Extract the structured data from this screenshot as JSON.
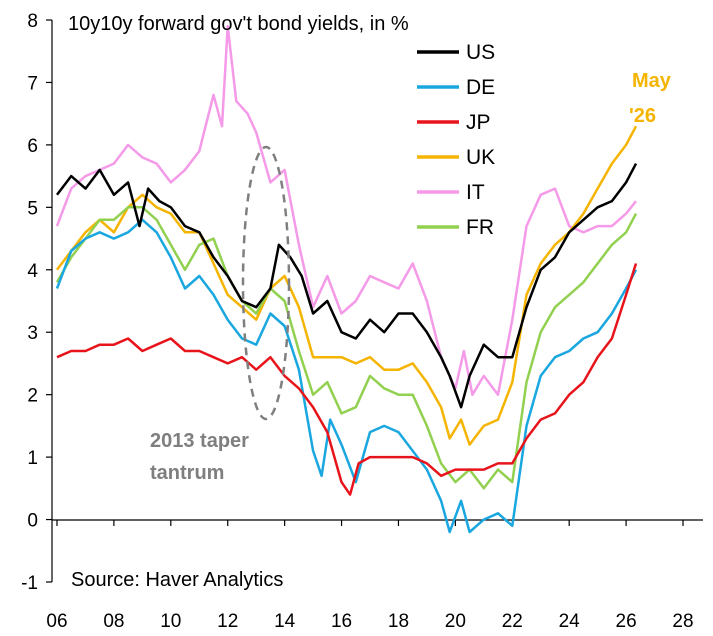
{
  "chart_data": {
    "type": "line",
    "title": "10y10y forward gov't bond yields, in %",
    "source": "Source: Haver Analytics",
    "annotation_text_1": "2013 taper",
    "annotation_text_2": "tantrum",
    "end_label_1": "May",
    "end_label_2": "'26",
    "end_label_color": "#f5b400",
    "ylim": [
      -1,
      8
    ],
    "xlim": [
      2006,
      2028
    ],
    "y_ticks": [
      "-1",
      "0",
      "1",
      "2",
      "3",
      "4",
      "5",
      "6",
      "7",
      "8"
    ],
    "x_ticks": [
      "06",
      "08",
      "10",
      "12",
      "14",
      "16",
      "18",
      "20",
      "22",
      "24",
      "26",
      "28"
    ],
    "grid": false,
    "legend_position": "top-right",
    "series": [
      {
        "name": "US",
        "color": "#000000",
        "x": [
          2006.0,
          2006.5,
          2007.0,
          2007.5,
          2008.0,
          2008.5,
          2008.9,
          2009.2,
          2009.6,
          2010.0,
          2010.5,
          2011.0,
          2011.5,
          2012.0,
          2012.5,
          2013.0,
          2013.5,
          2013.8,
          2014.2,
          2014.6,
          2015.0,
          2015.5,
          2016.0,
          2016.5,
          2017.0,
          2017.5,
          2018.0,
          2018.5,
          2019.0,
          2019.5,
          2019.8,
          2020.2,
          2020.5,
          2021.0,
          2021.5,
          2022.0,
          2022.5,
          2023.0,
          2023.5,
          2024.0,
          2024.5,
          2025.0,
          2025.5,
          2026.0,
          2026.35
        ],
        "y": [
          5.2,
          5.5,
          5.3,
          5.6,
          5.2,
          5.4,
          4.7,
          5.3,
          5.1,
          5.0,
          4.7,
          4.6,
          4.2,
          3.9,
          3.5,
          3.4,
          3.7,
          4.4,
          4.2,
          3.9,
          3.3,
          3.5,
          3.0,
          2.9,
          3.2,
          3.0,
          3.3,
          3.3,
          3.0,
          2.6,
          2.3,
          1.8,
          2.3,
          2.8,
          2.6,
          2.6,
          3.4,
          4.0,
          4.2,
          4.6,
          4.8,
          5.0,
          5.1,
          5.4,
          5.7
        ]
      },
      {
        "name": "DE",
        "color": "#1aa7e0",
        "x": [
          2006.0,
          2006.5,
          2007.0,
          2007.5,
          2008.0,
          2008.5,
          2009.0,
          2009.5,
          2010.0,
          2010.5,
          2011.0,
          2011.5,
          2012.0,
          2012.5,
          2013.0,
          2013.5,
          2014.0,
          2014.5,
          2015.0,
          2015.3,
          2015.6,
          2016.0,
          2016.5,
          2017.0,
          2017.5,
          2018.0,
          2018.5,
          2019.0,
          2019.5,
          2019.8,
          2020.2,
          2020.5,
          2021.0,
          2021.5,
          2022.0,
          2022.5,
          2023.0,
          2023.5,
          2024.0,
          2024.5,
          2025.0,
          2025.5,
          2026.0,
          2026.35
        ],
        "y": [
          3.7,
          4.3,
          4.5,
          4.6,
          4.5,
          4.6,
          4.8,
          4.6,
          4.2,
          3.7,
          3.9,
          3.6,
          3.2,
          2.9,
          2.8,
          3.3,
          3.1,
          2.4,
          1.1,
          0.7,
          1.6,
          1.2,
          0.6,
          1.4,
          1.5,
          1.4,
          1.1,
          0.8,
          0.3,
          -0.2,
          0.3,
          -0.2,
          0.0,
          0.1,
          -0.1,
          1.5,
          2.3,
          2.6,
          2.7,
          2.9,
          3.0,
          3.3,
          3.7,
          4.0
        ]
      },
      {
        "name": "JP",
        "color": "#e8141b",
        "x": [
          2006.0,
          2006.5,
          2007.0,
          2007.5,
          2008.0,
          2008.5,
          2009.0,
          2009.5,
          2010.0,
          2010.5,
          2011.0,
          2011.5,
          2012.0,
          2012.5,
          2013.0,
          2013.5,
          2014.0,
          2014.5,
          2015.0,
          2015.5,
          2016.0,
          2016.3,
          2016.6,
          2017.0,
          2017.5,
          2018.0,
          2018.5,
          2019.0,
          2019.5,
          2020.0,
          2020.5,
          2021.0,
          2021.5,
          2022.0,
          2022.5,
          2023.0,
          2023.5,
          2024.0,
          2024.5,
          2025.0,
          2025.5,
          2026.0,
          2026.35
        ],
        "y": [
          2.6,
          2.7,
          2.7,
          2.8,
          2.8,
          2.9,
          2.7,
          2.8,
          2.9,
          2.7,
          2.7,
          2.6,
          2.5,
          2.6,
          2.4,
          2.6,
          2.3,
          2.1,
          1.8,
          1.4,
          0.6,
          0.4,
          0.9,
          1.0,
          1.0,
          1.0,
          1.0,
          0.9,
          0.7,
          0.8,
          0.8,
          0.8,
          0.9,
          0.9,
          1.3,
          1.6,
          1.7,
          2.0,
          2.2,
          2.6,
          2.9,
          3.6,
          4.1
        ]
      },
      {
        "name": "UK",
        "color": "#f5b400",
        "x": [
          2006.0,
          2006.5,
          2007.0,
          2007.5,
          2008.0,
          2008.5,
          2009.0,
          2009.5,
          2010.0,
          2010.5,
          2011.0,
          2011.5,
          2012.0,
          2012.5,
          2013.0,
          2013.5,
          2014.0,
          2014.5,
          2015.0,
          2015.5,
          2016.0,
          2016.5,
          2017.0,
          2017.5,
          2018.0,
          2018.5,
          2019.0,
          2019.5,
          2019.8,
          2020.2,
          2020.5,
          2021.0,
          2021.5,
          2022.0,
          2022.5,
          2023.0,
          2023.5,
          2024.0,
          2024.5,
          2025.0,
          2025.5,
          2026.0,
          2026.35
        ],
        "y": [
          4.0,
          4.3,
          4.6,
          4.8,
          4.6,
          5.0,
          5.2,
          5.0,
          4.9,
          4.6,
          4.6,
          4.1,
          3.6,
          3.4,
          3.2,
          3.7,
          3.9,
          3.4,
          2.6,
          2.6,
          2.6,
          2.5,
          2.6,
          2.4,
          2.4,
          2.5,
          2.2,
          1.8,
          1.3,
          1.6,
          1.2,
          1.5,
          1.6,
          2.2,
          3.6,
          4.1,
          4.4,
          4.6,
          4.9,
          5.3,
          5.7,
          6.0,
          6.3
        ]
      },
      {
        "name": "IT",
        "color": "#f59ae8",
        "x": [
          2006.0,
          2006.5,
          2007.0,
          2007.5,
          2008.0,
          2008.5,
          2009.0,
          2009.5,
          2010.0,
          2010.5,
          2011.0,
          2011.5,
          2011.8,
          2012.0,
          2012.3,
          2012.7,
          2013.0,
          2013.5,
          2014.0,
          2014.5,
          2015.0,
          2015.5,
          2016.0,
          2016.5,
          2017.0,
          2017.5,
          2018.0,
          2018.5,
          2019.0,
          2019.5,
          2020.0,
          2020.3,
          2020.6,
          2021.0,
          2021.5,
          2022.0,
          2022.5,
          2023.0,
          2023.5,
          2024.0,
          2024.5,
          2025.0,
          2025.5,
          2026.0,
          2026.35
        ],
        "y": [
          4.7,
          5.3,
          5.5,
          5.6,
          5.7,
          6.0,
          5.8,
          5.7,
          5.4,
          5.6,
          5.9,
          6.8,
          6.3,
          7.9,
          6.7,
          6.5,
          6.2,
          5.4,
          5.6,
          4.4,
          3.4,
          3.9,
          3.3,
          3.5,
          3.9,
          3.8,
          3.7,
          4.1,
          3.5,
          2.6,
          2.1,
          2.7,
          2.0,
          2.3,
          2.0,
          3.2,
          4.7,
          5.2,
          5.3,
          4.7,
          4.6,
          4.7,
          4.7,
          4.9,
          5.1
        ]
      },
      {
        "name": "FR",
        "color": "#92d050",
        "x": [
          2006.0,
          2006.5,
          2007.0,
          2007.5,
          2008.0,
          2008.5,
          2009.0,
          2009.5,
          2010.0,
          2010.5,
          2011.0,
          2011.5,
          2012.0,
          2012.5,
          2013.0,
          2013.5,
          2014.0,
          2014.5,
          2015.0,
          2015.5,
          2016.0,
          2016.5,
          2017.0,
          2017.5,
          2018.0,
          2018.5,
          2019.0,
          2019.5,
          2020.0,
          2020.5,
          2021.0,
          2021.5,
          2022.0,
          2022.5,
          2023.0,
          2023.5,
          2024.0,
          2024.5,
          2025.0,
          2025.5,
          2026.0,
          2026.35
        ],
        "y": [
          3.8,
          4.2,
          4.5,
          4.8,
          4.8,
          5.0,
          5.0,
          4.8,
          4.4,
          4.0,
          4.4,
          4.5,
          3.9,
          3.5,
          3.3,
          3.7,
          3.5,
          2.7,
          2.0,
          2.2,
          1.7,
          1.8,
          2.3,
          2.1,
          2.0,
          2.0,
          1.5,
          0.9,
          0.6,
          0.8,
          0.5,
          0.8,
          0.6,
          2.2,
          3.0,
          3.4,
          3.6,
          3.8,
          4.1,
          4.4,
          4.6,
          4.9
        ]
      }
    ]
  }
}
